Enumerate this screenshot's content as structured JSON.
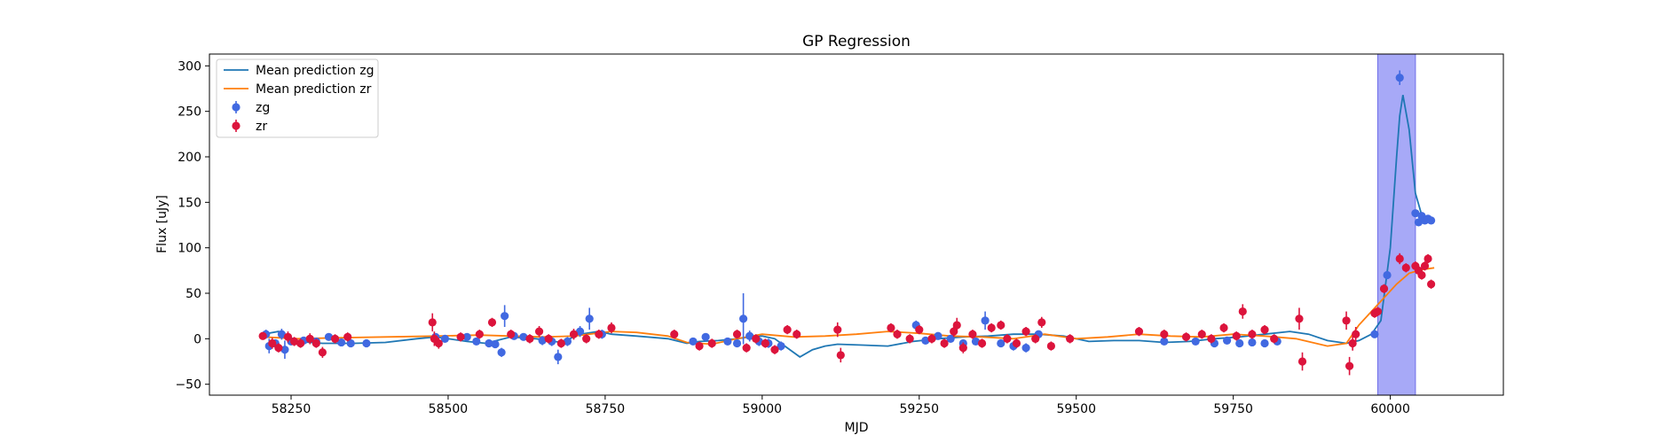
{
  "chart_data": {
    "type": "scatter",
    "title": "GP Regression",
    "xlabel": "MJD",
    "ylabel": "Flux [uJy]",
    "xlim": [
      58120,
      60180
    ],
    "ylim": [
      -62,
      313
    ],
    "xticks": [
      58250,
      58500,
      58750,
      59000,
      59250,
      59500,
      59750,
      60000
    ],
    "yticks": [
      -50,
      0,
      50,
      100,
      150,
      200,
      250,
      300
    ],
    "grid": false,
    "legend_position": "top-left",
    "highlight_span": {
      "x": [
        59980,
        60040
      ],
      "color": "#a7a9f7"
    },
    "series": [
      {
        "name": "Mean prediction zg",
        "kind": "line",
        "color": "#1f77b4",
        "x": [
          58205,
          58230,
          58260,
          58300,
          58350,
          58400,
          58450,
          58480,
          58500,
          58530,
          58560,
          58600,
          58640,
          58680,
          58710,
          58740,
          58760,
          58800,
          58850,
          58880,
          58900,
          58930,
          58960,
          58980,
          59000,
          59020,
          59040,
          59060,
          59080,
          59100,
          59120,
          59160,
          59200,
          59240,
          59280,
          59320,
          59360,
          59400,
          59440,
          59480,
          59520,
          59560,
          59600,
          59640,
          59680,
          59720,
          59760,
          59800,
          59840,
          59870,
          59900,
          59930,
          59950,
          59970,
          59985,
          60000,
          60010,
          60015,
          60020,
          60030,
          60040,
          60050,
          60060,
          60070
        ],
        "y": [
          5,
          8,
          -3,
          -5,
          -5,
          -4,
          0,
          2,
          0,
          -3,
          -5,
          2,
          0,
          -4,
          5,
          8,
          5,
          3,
          0,
          -5,
          -3,
          -2,
          0,
          2,
          3,
          0,
          -10,
          -20,
          -12,
          -8,
          -6,
          -7,
          -8,
          -3,
          0,
          2,
          3,
          5,
          5,
          3,
          -3,
          -2,
          -2,
          -4,
          -3,
          0,
          2,
          5,
          8,
          5,
          -2,
          -5,
          -2,
          5,
          20,
          100,
          200,
          245,
          268,
          230,
          160,
          136,
          131,
          128
        ]
      },
      {
        "name": "Mean prediction zr",
        "kind": "line",
        "color": "#ff7f0e",
        "x": [
          58205,
          58260,
          58320,
          58400,
          58480,
          58550,
          58600,
          58650,
          58700,
          58760,
          58800,
          58850,
          58880,
          58920,
          58960,
          59000,
          59050,
          59100,
          59150,
          59200,
          59250,
          59300,
          59350,
          59400,
          59450,
          59500,
          59550,
          59600,
          59650,
          59700,
          59750,
          59800,
          59850,
          59900,
          59930,
          59950,
          59970,
          59990,
          60010,
          60030,
          60050,
          60070
        ],
        "y": [
          2,
          0,
          1,
          2,
          3,
          4,
          3,
          2,
          3,
          8,
          7,
          3,
          -4,
          -6,
          0,
          5,
          2,
          3,
          5,
          8,
          6,
          3,
          2,
          0,
          5,
          0,
          2,
          5,
          3,
          2,
          5,
          3,
          0,
          -8,
          -5,
          15,
          30,
          45,
          60,
          72,
          76,
          78
        ]
      },
      {
        "name": "zg",
        "kind": "errorbar",
        "color": "#4169e1",
        "points": [
          [
            58210,
            5,
            5
          ],
          [
            58215,
            -8,
            8
          ],
          [
            58225,
            -5,
            4
          ],
          [
            58235,
            5,
            6
          ],
          [
            58240,
            -12,
            10
          ],
          [
            58250,
            -3,
            4
          ],
          [
            58270,
            -2,
            4
          ],
          [
            58290,
            -3,
            4
          ],
          [
            58310,
            2,
            4
          ],
          [
            58330,
            -4,
            4
          ],
          [
            58345,
            -5,
            3
          ],
          [
            58370,
            -5,
            3
          ],
          [
            58480,
            2,
            3
          ],
          [
            58495,
            0,
            3
          ],
          [
            58530,
            2,
            3
          ],
          [
            58545,
            -3,
            3
          ],
          [
            58565,
            -5,
            4
          ],
          [
            58575,
            -6,
            4
          ],
          [
            58585,
            -15,
            5
          ],
          [
            58590,
            25,
            12
          ],
          [
            58605,
            3,
            4
          ],
          [
            58620,
            2,
            4
          ],
          [
            58650,
            -2,
            5
          ],
          [
            58665,
            -3,
            5
          ],
          [
            58675,
            -20,
            8
          ],
          [
            58690,
            -3,
            5
          ],
          [
            58710,
            8,
            6
          ],
          [
            58725,
            22,
            12
          ],
          [
            58745,
            5,
            5
          ],
          [
            58890,
            -3,
            4
          ],
          [
            58910,
            2,
            4
          ],
          [
            58945,
            -3,
            4
          ],
          [
            58960,
            -5,
            4
          ],
          [
            58970,
            22,
            28
          ],
          [
            58980,
            3,
            6
          ],
          [
            58995,
            -3,
            5
          ],
          [
            59010,
            -5,
            5
          ],
          [
            59030,
            -8,
            5
          ],
          [
            59245,
            15,
            5
          ],
          [
            59260,
            -2,
            4
          ],
          [
            59280,
            3,
            4
          ],
          [
            59300,
            0,
            4
          ],
          [
            59320,
            -5,
            4
          ],
          [
            59340,
            -3,
            4
          ],
          [
            59355,
            20,
            10
          ],
          [
            59380,
            -5,
            4
          ],
          [
            59400,
            -8,
            5
          ],
          [
            59420,
            -10,
            5
          ],
          [
            59440,
            5,
            4
          ],
          [
            59640,
            -3,
            3
          ],
          [
            59690,
            -3,
            3
          ],
          [
            59720,
            -5,
            3
          ],
          [
            59740,
            -2,
            3
          ],
          [
            59760,
            -5,
            3
          ],
          [
            59780,
            -4,
            3
          ],
          [
            59800,
            -5,
            3
          ],
          [
            59820,
            -3,
            3
          ],
          [
            59975,
            5,
            3
          ],
          [
            59990,
            55,
            4
          ],
          [
            59995,
            70,
            4
          ],
          [
            60015,
            287,
            8
          ],
          [
            60040,
            138,
            3
          ],
          [
            60045,
            128,
            4
          ],
          [
            60050,
            135,
            4
          ],
          [
            60055,
            130,
            4
          ],
          [
            60060,
            132,
            4
          ],
          [
            60065,
            130,
            4
          ]
        ]
      },
      {
        "name": "zr",
        "kind": "errorbar",
        "color": "#dc143c",
        "points": [
          [
            58205,
            3,
            4
          ],
          [
            58220,
            -5,
            6
          ],
          [
            58230,
            -10,
            5
          ],
          [
            58245,
            2,
            6
          ],
          [
            58255,
            -3,
            5
          ],
          [
            58265,
            -5,
            5
          ],
          [
            58280,
            0,
            6
          ],
          [
            58290,
            -5,
            5
          ],
          [
            58300,
            -15,
            6
          ],
          [
            58320,
            0,
            5
          ],
          [
            58340,
            2,
            5
          ],
          [
            58475,
            18,
            10
          ],
          [
            58478,
            0,
            8
          ],
          [
            58485,
            -5,
            6
          ],
          [
            58520,
            2,
            5
          ],
          [
            58550,
            5,
            5
          ],
          [
            58570,
            18,
            5
          ],
          [
            58600,
            5,
            5
          ],
          [
            58630,
            0,
            5
          ],
          [
            58645,
            8,
            6
          ],
          [
            58660,
            0,
            5
          ],
          [
            58680,
            -5,
            5
          ],
          [
            58700,
            5,
            6
          ],
          [
            58720,
            0,
            5
          ],
          [
            58740,
            5,
            5
          ],
          [
            58760,
            12,
            6
          ],
          [
            58860,
            5,
            5
          ],
          [
            58900,
            -8,
            5
          ],
          [
            58920,
            -5,
            5
          ],
          [
            58960,
            5,
            5
          ],
          [
            58975,
            -10,
            5
          ],
          [
            58990,
            0,
            5
          ],
          [
            59005,
            -5,
            5
          ],
          [
            59020,
            -12,
            5
          ],
          [
            59040,
            10,
            5
          ],
          [
            59055,
            5,
            5
          ],
          [
            59120,
            10,
            8
          ],
          [
            59125,
            -18,
            8
          ],
          [
            59205,
            12,
            5
          ],
          [
            59215,
            5,
            5
          ],
          [
            59235,
            0,
            5
          ],
          [
            59250,
            10,
            5
          ],
          [
            59270,
            0,
            5
          ],
          [
            59290,
            -5,
            5
          ],
          [
            59305,
            8,
            6
          ],
          [
            59310,
            15,
            8
          ],
          [
            59320,
            -10,
            6
          ],
          [
            59335,
            5,
            5
          ],
          [
            59350,
            -5,
            5
          ],
          [
            59365,
            12,
            5
          ],
          [
            59380,
            15,
            5
          ],
          [
            59390,
            0,
            5
          ],
          [
            59405,
            -5,
            5
          ],
          [
            59420,
            8,
            5
          ],
          [
            59435,
            0,
            5
          ],
          [
            59445,
            18,
            6
          ],
          [
            59460,
            -8,
            5
          ],
          [
            59490,
            0,
            5
          ],
          [
            59600,
            8,
            5
          ],
          [
            59640,
            5,
            5
          ],
          [
            59675,
            2,
            5
          ],
          [
            59700,
            5,
            5
          ],
          [
            59715,
            0,
            5
          ],
          [
            59735,
            12,
            5
          ],
          [
            59755,
            3,
            5
          ],
          [
            59765,
            30,
            8
          ],
          [
            59780,
            5,
            5
          ],
          [
            59800,
            10,
            5
          ],
          [
            59815,
            0,
            5
          ],
          [
            59855,
            22,
            12
          ],
          [
            59860,
            -25,
            10
          ],
          [
            59930,
            20,
            10
          ],
          [
            59935,
            -30,
            10
          ],
          [
            59940,
            -5,
            8
          ],
          [
            59945,
            5,
            8
          ],
          [
            59975,
            28,
            5
          ],
          [
            59980,
            30,
            5
          ],
          [
            59990,
            55,
            5
          ],
          [
            60015,
            88,
            6
          ],
          [
            60025,
            78,
            5
          ],
          [
            60040,
            80,
            5
          ],
          [
            60045,
            75,
            5
          ],
          [
            60050,
            70,
            5
          ],
          [
            60055,
            80,
            5
          ],
          [
            60060,
            88,
            5
          ],
          [
            60065,
            60,
            5
          ]
        ]
      }
    ]
  }
}
